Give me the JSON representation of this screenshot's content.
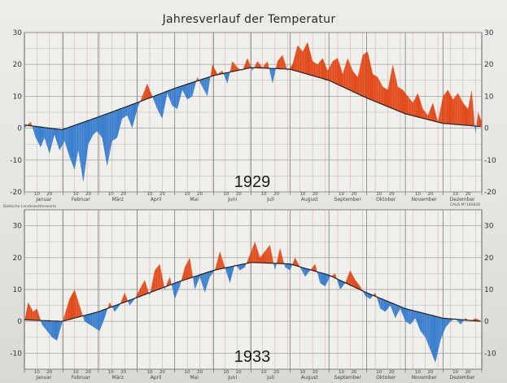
{
  "title": "Jahresverlauf der Temperatur",
  "source_note": "Badische Landeswetterwarte",
  "publisher_note": "CAUS M*186828",
  "colors": {
    "above_normal": "#e24a1a",
    "below_normal": "#3a7fcf",
    "grid": "#c98a7a",
    "line": "#222222"
  },
  "chart_data": [
    {
      "type": "area",
      "label": "1929",
      "ylim": [
        -20,
        30
      ],
      "y_ticks": [
        -20,
        -10,
        0,
        10,
        20,
        30
      ],
      "month_labels": [
        "Januar",
        "Februar",
        "März",
        "April",
        "Mai",
        "Juni",
        "Juli",
        "August",
        "September",
        "Oktober",
        "November",
        "Dezember"
      ],
      "day_ticks": [
        "10",
        "20"
      ],
      "grid": true,
      "x_unit": "day of year",
      "normal_points": [
        [
          0,
          1
        ],
        [
          30,
          -0.5
        ],
        [
          59,
          3.5
        ],
        [
          90,
          8
        ],
        [
          120,
          12.5
        ],
        [
          151,
          16.5
        ],
        [
          181,
          19
        ],
        [
          212,
          18.5
        ],
        [
          243,
          15
        ],
        [
          273,
          9.5
        ],
        [
          304,
          4.5
        ],
        [
          334,
          1.5
        ],
        [
          365,
          0.5
        ]
      ],
      "actual_points": [
        [
          0,
          0
        ],
        [
          5,
          2
        ],
        [
          9,
          -3
        ],
        [
          13,
          -6
        ],
        [
          16,
          -3
        ],
        [
          20,
          -8
        ],
        [
          24,
          -2
        ],
        [
          28,
          -7
        ],
        [
          32,
          -4
        ],
        [
          36,
          -9
        ],
        [
          40,
          -13
        ],
        [
          43,
          -7
        ],
        [
          47,
          -17
        ],
        [
          51,
          -5
        ],
        [
          55,
          -2
        ],
        [
          58,
          -1
        ],
        [
          62,
          -3
        ],
        [
          66,
          -12
        ],
        [
          70,
          -4
        ],
        [
          74,
          -3
        ],
        [
          78,
          3
        ],
        [
          82,
          4
        ],
        [
          86,
          0
        ],
        [
          90,
          6
        ],
        [
          94,
          10
        ],
        [
          98,
          14
        ],
        [
          102,
          10
        ],
        [
          106,
          6
        ],
        [
          110,
          3
        ],
        [
          114,
          11
        ],
        [
          118,
          7
        ],
        [
          122,
          6
        ],
        [
          126,
          12
        ],
        [
          130,
          9
        ],
        [
          134,
          10
        ],
        [
          138,
          16
        ],
        [
          142,
          13
        ],
        [
          146,
          10
        ],
        [
          150,
          20
        ],
        [
          154,
          17
        ],
        [
          158,
          18
        ],
        [
          162,
          14
        ],
        [
          166,
          21
        ],
        [
          170,
          19
        ],
        [
          174,
          18
        ],
        [
          178,
          22
        ],
        [
          182,
          18
        ],
        [
          186,
          21
        ],
        [
          190,
          19
        ],
        [
          194,
          21
        ],
        [
          198,
          14
        ],
        [
          202,
          21
        ],
        [
          206,
          23
        ],
        [
          210,
          18
        ],
        [
          214,
          20
        ],
        [
          218,
          26
        ],
        [
          222,
          24
        ],
        [
          226,
          27
        ],
        [
          230,
          21
        ],
        [
          234,
          20
        ],
        [
          238,
          22
        ],
        [
          242,
          18
        ],
        [
          246,
          21
        ],
        [
          250,
          22
        ],
        [
          254,
          17
        ],
        [
          258,
          22
        ],
        [
          262,
          18
        ],
        [
          266,
          16
        ],
        [
          270,
          23
        ],
        [
          274,
          24
        ],
        [
          278,
          17
        ],
        [
          282,
          16
        ],
        [
          286,
          13
        ],
        [
          290,
          12
        ],
        [
          294,
          20
        ],
        [
          298,
          13
        ],
        [
          302,
          12
        ],
        [
          306,
          10
        ],
        [
          310,
          8
        ],
        [
          314,
          11
        ],
        [
          318,
          6
        ],
        [
          322,
          4
        ],
        [
          326,
          8
        ],
        [
          330,
          2
        ],
        [
          334,
          10
        ],
        [
          338,
          12
        ],
        [
          342,
          9
        ],
        [
          346,
          11
        ],
        [
          350,
          8
        ],
        [
          354,
          6
        ],
        [
          357,
          12
        ],
        [
          360,
          -2
        ],
        [
          362,
          5
        ],
        [
          365,
          2
        ]
      ]
    },
    {
      "type": "area",
      "label": "1933",
      "ylim": [
        -15,
        35
      ],
      "y_ticks": [
        -10,
        0,
        10,
        20,
        30
      ],
      "month_labels": [
        "Januar",
        "Februar",
        "März",
        "April",
        "Mai",
        "Juni",
        "Juli",
        "August",
        "September",
        "Oktober",
        "November",
        "Dezember"
      ],
      "day_ticks": [
        "10",
        "20"
      ],
      "grid": true,
      "x_unit": "day of year",
      "normal_points": [
        [
          0,
          0.5
        ],
        [
          30,
          0
        ],
        [
          59,
          3
        ],
        [
          90,
          7.5
        ],
        [
          120,
          12
        ],
        [
          151,
          16
        ],
        [
          181,
          18.5
        ],
        [
          212,
          18
        ],
        [
          243,
          14.5
        ],
        [
          273,
          9
        ],
        [
          304,
          4
        ],
        [
          334,
          1
        ],
        [
          365,
          0
        ]
      ],
      "actual_points": [
        [
          0,
          0
        ],
        [
          3,
          6
        ],
        [
          7,
          3
        ],
        [
          10,
          4
        ],
        [
          14,
          -1
        ],
        [
          18,
          -3
        ],
        [
          22,
          -5
        ],
        [
          26,
          -6
        ],
        [
          29,
          -2
        ],
        [
          32,
          2
        ],
        [
          36,
          7
        ],
        [
          40,
          10
        ],
        [
          44,
          5
        ],
        [
          48,
          0
        ],
        [
          52,
          -1
        ],
        [
          56,
          -2
        ],
        [
          60,
          -3
        ],
        [
          64,
          1
        ],
        [
          68,
          6
        ],
        [
          72,
          3
        ],
        [
          76,
          5
        ],
        [
          80,
          9
        ],
        [
          84,
          5
        ],
        [
          88,
          7
        ],
        [
          92,
          10
        ],
        [
          96,
          13
        ],
        [
          100,
          8
        ],
        [
          104,
          16
        ],
        [
          108,
          18
        ],
        [
          112,
          10
        ],
        [
          116,
          14
        ],
        [
          120,
          7
        ],
        [
          124,
          11
        ],
        [
          128,
          17
        ],
        [
          132,
          20
        ],
        [
          136,
          10
        ],
        [
          140,
          14
        ],
        [
          144,
          9
        ],
        [
          148,
          14
        ],
        [
          152,
          16
        ],
        [
          156,
          22
        ],
        [
          160,
          17
        ],
        [
          164,
          12
        ],
        [
          168,
          18
        ],
        [
          172,
          16
        ],
        [
          176,
          17
        ],
        [
          180,
          21
        ],
        [
          184,
          25
        ],
        [
          188,
          20
        ],
        [
          192,
          22
        ],
        [
          196,
          24
        ],
        [
          200,
          16
        ],
        [
          204,
          23
        ],
        [
          208,
          17
        ],
        [
          212,
          16
        ],
        [
          216,
          20
        ],
        [
          220,
          17
        ],
        [
          224,
          14
        ],
        [
          228,
          16
        ],
        [
          232,
          18
        ],
        [
          236,
          12
        ],
        [
          240,
          11
        ],
        [
          244,
          14
        ],
        [
          248,
          15
        ],
        [
          252,
          10
        ],
        [
          256,
          12
        ],
        [
          260,
          16
        ],
        [
          264,
          13
        ],
        [
          268,
          11
        ],
        [
          272,
          8
        ],
        [
          276,
          7
        ],
        [
          280,
          9
        ],
        [
          284,
          4
        ],
        [
          288,
          3
        ],
        [
          292,
          5
        ],
        [
          296,
          1
        ],
        [
          300,
          4
        ],
        [
          304,
          0
        ],
        [
          308,
          -1
        ],
        [
          312,
          1
        ],
        [
          316,
          -3
        ],
        [
          320,
          -5
        ],
        [
          324,
          -9
        ],
        [
          328,
          -13
        ],
        [
          332,
          -6
        ],
        [
          336,
          -2
        ],
        [
          340,
          0
        ],
        [
          344,
          1
        ],
        [
          348,
          -1
        ],
        [
          352,
          1
        ],
        [
          356,
          0
        ],
        [
          360,
          1
        ],
        [
          365,
          0
        ]
      ]
    }
  ]
}
